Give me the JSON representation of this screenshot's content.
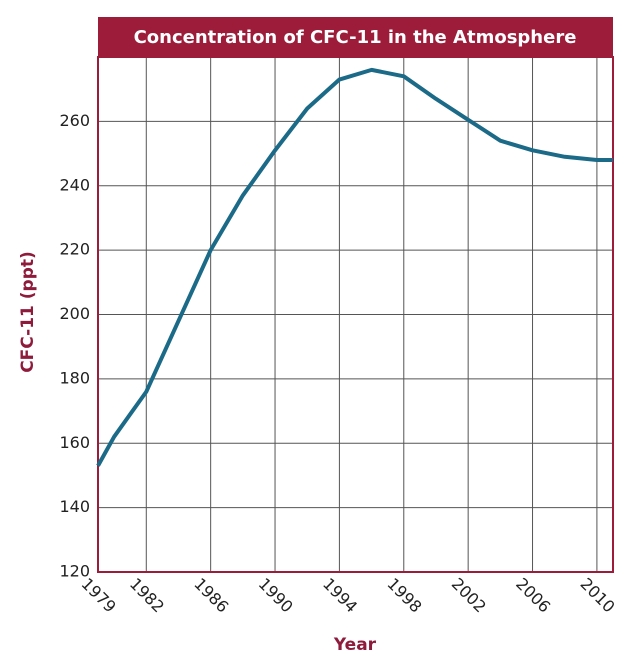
{
  "chart_data": {
    "type": "line",
    "title": "Concentration of CFC-11 in the Atmosphere",
    "x_label": "Year",
    "y_label": "CFC-11 (ppt)",
    "x": [
      1979,
      1980,
      1982,
      1984,
      1986,
      1988,
      1990,
      1992,
      1994,
      1996,
      1998,
      2000,
      2002,
      2004,
      2006,
      2008,
      2010,
      2011
    ],
    "series": [
      {
        "name": "CFC-11",
        "color": "#1b6a87",
        "values": [
          153,
          162,
          176,
          198,
          220,
          237,
          251,
          264,
          273,
          276,
          274,
          267,
          260.5,
          254,
          251,
          249,
          248,
          248
        ]
      }
    ],
    "xlim": [
      1979,
      2011
    ],
    "xticks": [
      1979,
      1982,
      1986,
      1990,
      1994,
      1998,
      2002,
      2006,
      2010
    ],
    "ylim": [
      120,
      280
    ],
    "yticks": [
      120,
      140,
      160,
      180,
      200,
      220,
      240,
      260
    ],
    "grid": true,
    "title_color": "#9c1c3a"
  }
}
